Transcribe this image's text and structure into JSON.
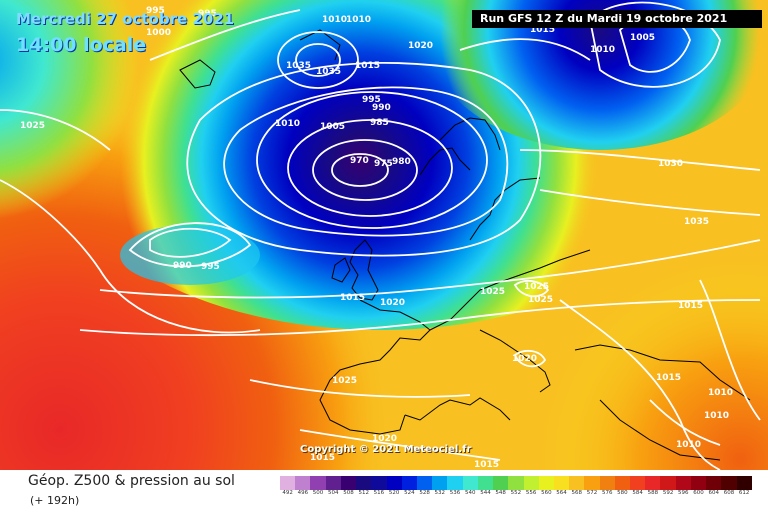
{
  "header": {
    "date": "Mercredi 27 octobre 2021",
    "time": "14:00 locale",
    "run": "Run GFS 12 Z du Mardi 19 octobre 2021"
  },
  "copyright": "Copyright © 2021 Meteociel.fr",
  "footer": {
    "title": "Géop. Z500 & pression au sol",
    "subtitle": "(+ 192h)"
  },
  "scale": {
    "labels": [
      "492",
      "496",
      "500",
      "504",
      "508",
      "512",
      "516",
      "520",
      "524",
      "528",
      "532",
      "536",
      "540",
      "544",
      "548",
      "552",
      "556",
      "560",
      "564",
      "568",
      "572",
      "576",
      "580",
      "584",
      "588",
      "592",
      "596",
      "600",
      "604",
      "608",
      "612"
    ],
    "colors": [
      "#e0b0e0",
      "#c080d0",
      "#9040b0",
      "#602090",
      "#380070",
      "#1a0a80",
      "#100a9a",
      "#0000c0",
      "#0020e0",
      "#0060f0",
      "#00a0f0",
      "#20d0f0",
      "#40e8d0",
      "#40e090",
      "#50d050",
      "#90e040",
      "#c0f030",
      "#e8f020",
      "#f8e020",
      "#f8c020",
      "#f8a010",
      "#f08010",
      "#f06010",
      "#f04020",
      "#e82828",
      "#d01818",
      "#b00818",
      "#900010",
      "#700008",
      "#500000",
      "#300000"
    ]
  },
  "isobars": [
    {
      "id": "l1",
      "text": "995"
    },
    {
      "id": "l2",
      "text": "995"
    },
    {
      "id": "l3",
      "text": "1000"
    },
    {
      "id": "l4",
      "text": "1010"
    },
    {
      "id": "l5",
      "text": "1010"
    },
    {
      "id": "l6",
      "text": "1020"
    },
    {
      "id": "l7",
      "text": "1015"
    },
    {
      "id": "l8",
      "text": "1010"
    },
    {
      "id": "l9",
      "text": "1005"
    },
    {
      "id": "l10",
      "text": "1035"
    },
    {
      "id": "l11",
      "text": "1015"
    },
    {
      "id": "l12",
      "text": "1035"
    },
    {
      "id": "l13",
      "text": "1025"
    },
    {
      "id": "l14",
      "text": "995"
    },
    {
      "id": "l15",
      "text": "990"
    },
    {
      "id": "l16",
      "text": "1010"
    },
    {
      "id": "l17",
      "text": "1005"
    },
    {
      "id": "l18",
      "text": "985"
    },
    {
      "id": "l19",
      "text": "970"
    },
    {
      "id": "l20",
      "text": "975"
    },
    {
      "id": "l21",
      "text": "980"
    },
    {
      "id": "l22",
      "text": "1030"
    },
    {
      "id": "l23",
      "text": "1035"
    },
    {
      "id": "l24",
      "text": "990"
    },
    {
      "id": "l25",
      "text": "995"
    },
    {
      "id": "l26",
      "text": "1015"
    },
    {
      "id": "l27",
      "text": "1020"
    },
    {
      "id": "l28",
      "text": "1025"
    },
    {
      "id": "l29",
      "text": "1025"
    },
    {
      "id": "l30",
      "text": "1025"
    },
    {
      "id": "l31",
      "text": "1015"
    },
    {
      "id": "l32",
      "text": "1020"
    },
    {
      "id": "l33",
      "text": "1015"
    },
    {
      "id": "l34",
      "text": "1025"
    },
    {
      "id": "l35",
      "text": "1010"
    },
    {
      "id": "l36",
      "text": "1020"
    },
    {
      "id": "l37",
      "text": "1010"
    },
    {
      "id": "l38",
      "text": "1015"
    },
    {
      "id": "l39",
      "text": "1015"
    },
    {
      "id": "l40",
      "text": "1010"
    }
  ]
}
